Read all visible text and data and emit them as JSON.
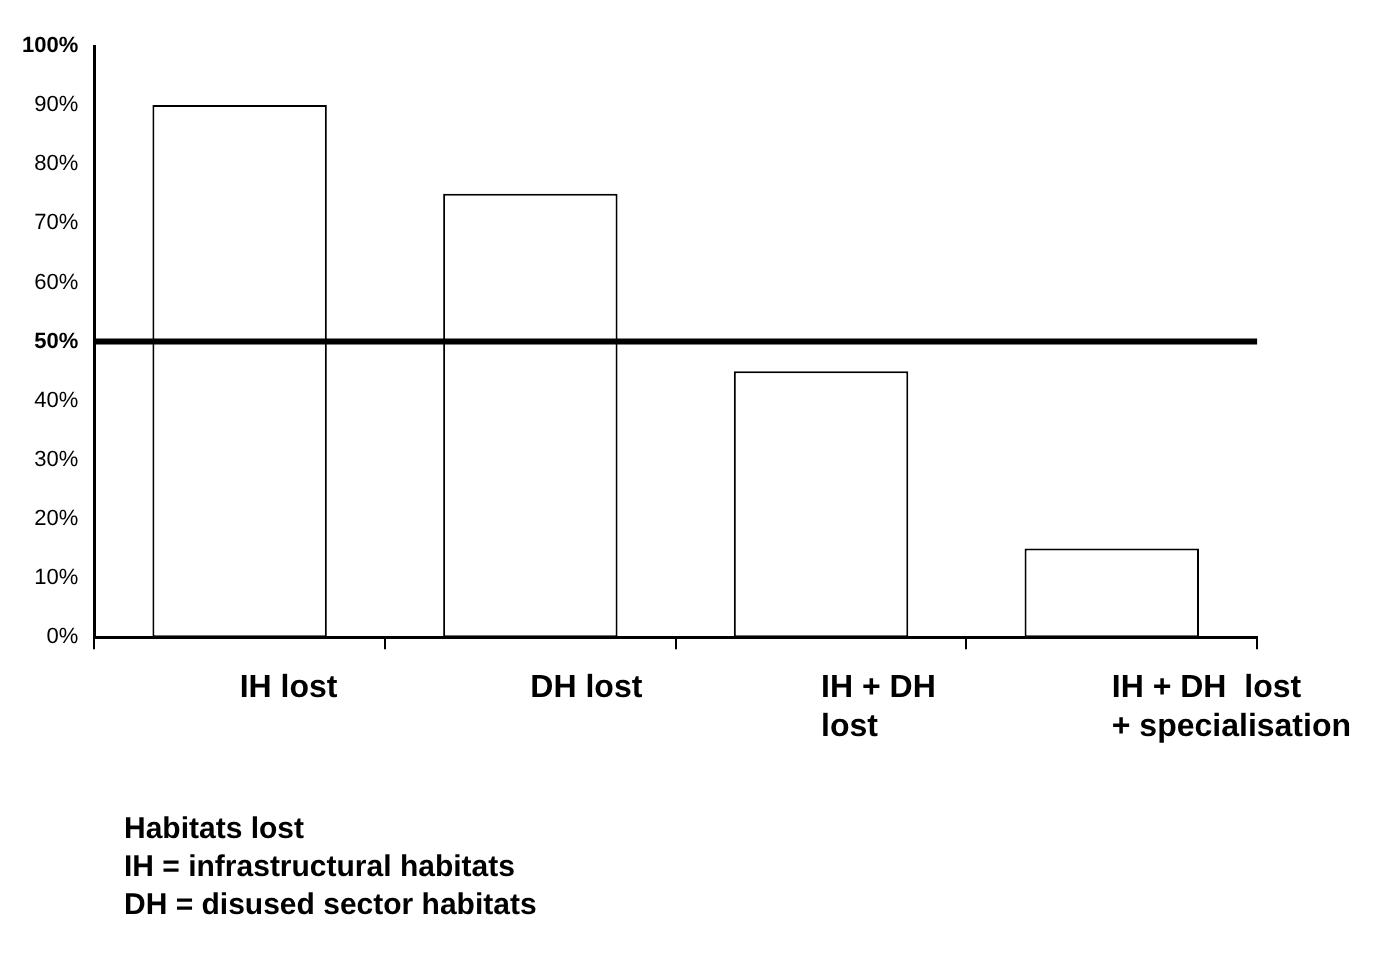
{
  "chart_data": {
    "type": "bar",
    "categories": [
      "IH lost",
      "DH lost",
      "IH + DH\nlost",
      "IH + DH  lost\n+ specialisation"
    ],
    "values": [
      90,
      75,
      45,
      15
    ],
    "color": "#ffffff",
    "ylim": [
      0,
      100
    ],
    "yticks": [
      {
        "value": 0,
        "label": "0%"
      },
      {
        "value": 10,
        "label": "10%"
      },
      {
        "value": 20,
        "label": "20%"
      },
      {
        "value": 30,
        "label": "30%"
      },
      {
        "value": 40,
        "label": "40%"
      },
      {
        "value": 50,
        "label": "50%"
      },
      {
        "value": 60,
        "label": "60%"
      },
      {
        "value": 70,
        "label": "70%"
      },
      {
        "value": 80,
        "label": "80%"
      },
      {
        "value": 90,
        "label": "90%"
      },
      {
        "value": 100,
        "label": "100%"
      }
    ],
    "ref_lines": [
      {
        "axis": "y",
        "value": 50,
        "color": "#000000"
      }
    ],
    "grid": false,
    "legend": false,
    "annotations": [
      "Habitats lost",
      "IH = infrastructural habitats",
      "DH = disused sector habitats"
    ]
  }
}
